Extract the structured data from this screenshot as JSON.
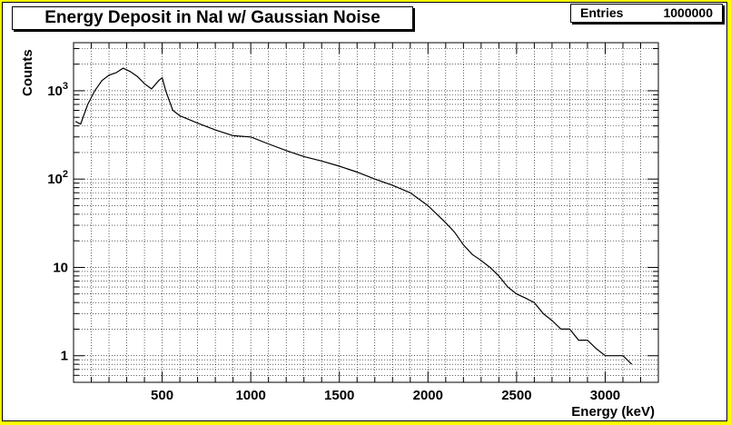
{
  "title": "Energy Deposit in NaI w/ Gaussian Noise",
  "stats": {
    "label": "Entries",
    "value": "1000000"
  },
  "chart_data": {
    "type": "line",
    "title": "Energy Deposit in NaI w/ Gaussian Noise",
    "xlabel": "Energy (keV)",
    "ylabel": "Counts",
    "xlim": [
      0,
      3300
    ],
    "ylim": [
      0.5,
      3500
    ],
    "log_y": true,
    "grid": true,
    "x_ticks": [
      {
        "value": 500,
        "label": "500"
      },
      {
        "value": 1000,
        "label": "1000"
      },
      {
        "value": 1500,
        "label": "1500"
      },
      {
        "value": 2000,
        "label": "2000"
      },
      {
        "value": 2500,
        "label": "2500"
      },
      {
        "value": 3000,
        "label": "3000"
      }
    ],
    "y_ticks": [
      {
        "value": 1,
        "label": "1",
        "base": "1",
        "exp": ""
      },
      {
        "value": 10,
        "label": "10",
        "base": "10",
        "exp": ""
      },
      {
        "value": 100,
        "label": "10^2",
        "base": "10",
        "exp": "2"
      },
      {
        "value": 1000,
        "label": "10^3",
        "base": "10",
        "exp": "3"
      }
    ],
    "series": [
      {
        "color": "#000000",
        "x": [
          10,
          40,
          80,
          120,
          160,
          200,
          240,
          280,
          320,
          360,
          400,
          440,
          480,
          500,
          520,
          560,
          600,
          700,
          800,
          900,
          1000,
          1100,
          1200,
          1300,
          1400,
          1500,
          1600,
          1700,
          1800,
          1900,
          2000,
          2050,
          2100,
          2150,
          2200,
          2250,
          2300,
          2350,
          2400,
          2450,
          2500,
          2550,
          2600,
          2650,
          2700,
          2750,
          2800,
          2850,
          2900,
          2950,
          3000,
          3050,
          3100,
          3150
        ],
        "y": [
          450,
          420,
          700,
          1000,
          1300,
          1500,
          1600,
          1800,
          1650,
          1450,
          1200,
          1050,
          1300,
          1400,
          1000,
          600,
          520,
          430,
          360,
          310,
          300,
          250,
          210,
          180,
          160,
          140,
          120,
          100,
          85,
          70,
          50,
          40,
          32,
          25,
          18,
          14,
          12,
          10,
          8,
          6,
          5,
          4.5,
          4,
          3,
          2.5,
          2,
          2,
          1.5,
          1.5,
          1.2,
          1,
          1,
          1,
          0.8
        ]
      }
    ]
  }
}
